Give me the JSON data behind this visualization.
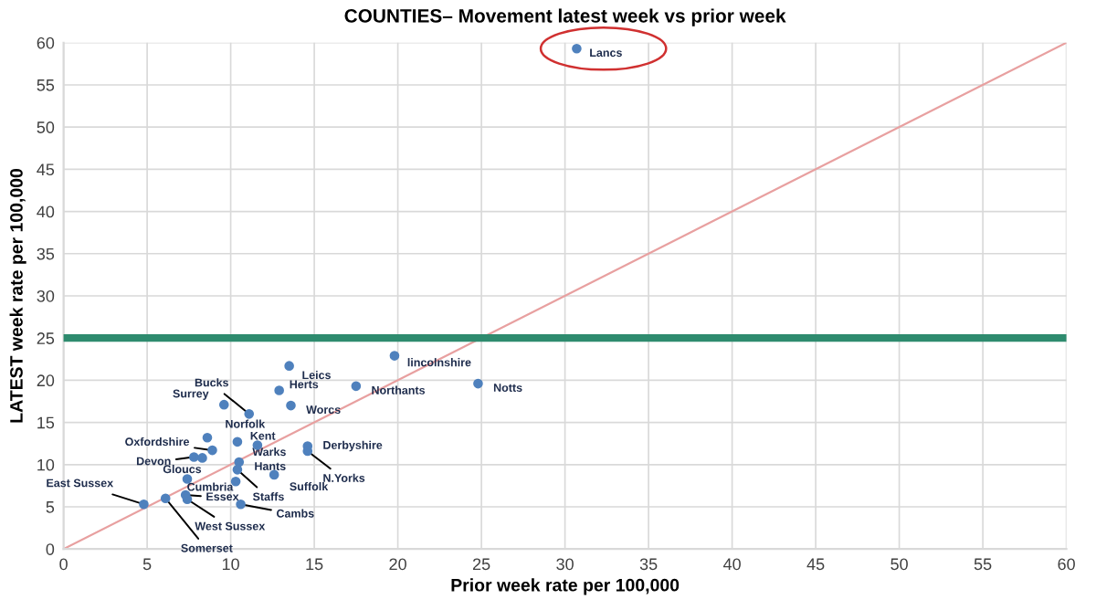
{
  "chart_data": {
    "type": "scatter",
    "title": "COUNTIES– Movement latest week vs prior week",
    "xlabel": "Prior week rate per 100,000",
    "ylabel": "LATEST week rate per 100,000",
    "xlim": [
      0,
      60
    ],
    "ylim": [
      0,
      60
    ],
    "xticks": [
      0,
      5,
      10,
      15,
      20,
      25,
      30,
      35,
      40,
      45,
      50,
      55,
      60
    ],
    "yticks": [
      0,
      5,
      10,
      15,
      20,
      25,
      30,
      35,
      40,
      45,
      50,
      55,
      60
    ],
    "grid": true,
    "series": [
      {
        "marker": "circle",
        "color": "#4f81bd",
        "x": [
          30.7,
          19.8,
          24.8,
          17.5,
          13.5,
          12.9,
          13.6,
          11.1,
          9.6,
          8.6,
          8.9,
          7.8,
          10.4,
          11.6,
          10.5,
          10.4,
          7.4,
          10.3,
          12.6,
          14.6,
          14.6,
          4.8,
          6.1,
          7.3,
          7.4,
          10.6,
          8.3
        ],
        "values": [
          59.3,
          22.9,
          19.6,
          19.3,
          21.7,
          18.8,
          17.0,
          16.0,
          17.1,
          13.2,
          11.7,
          10.9,
          12.7,
          12.3,
          10.3,
          9.4,
          8.3,
          8.0,
          8.8,
          12.2,
          11.6,
          5.3,
          6.0,
          6.4,
          5.9,
          5.3,
          10.8
        ]
      },
      {
        "type": "line",
        "color": "#e8a0a0",
        "x": [
          0,
          60
        ],
        "values": [
          0,
          60
        ]
      }
    ],
    "ref_lines": [
      {
        "axis": "y",
        "value": 25,
        "color": "#2e8b6e"
      }
    ],
    "annotations": [
      {
        "text": "Lancs",
        "x": 30.7,
        "y": 59.3
      },
      {
        "text": "lincolnshire",
        "x": 19.8,
        "y": 22.9
      },
      {
        "text": "Notts",
        "x": 24.8,
        "y": 19.6
      },
      {
        "text": "Northants",
        "x": 17.5,
        "y": 19.3
      },
      {
        "text": "Leics",
        "x": 13.5,
        "y": 21.7
      },
      {
        "text": "Herts",
        "x": 12.9,
        "y": 18.8
      },
      {
        "text": "Worcs",
        "x": 13.6,
        "y": 17.0
      },
      {
        "text": "Bucks",
        "x": 11.1,
        "y": 16.0
      },
      {
        "text": "Surrey",
        "x": 9.6,
        "y": 17.1
      },
      {
        "text": "Norfolk",
        "x": 8.6,
        "y": 13.2
      },
      {
        "text": "Oxfordshire",
        "x": 8.9,
        "y": 11.7
      },
      {
        "text": "Devon",
        "x": 7.8,
        "y": 10.9
      },
      {
        "text": "Kent",
        "x": 10.4,
        "y": 12.7
      },
      {
        "text": "Warks",
        "x": 11.6,
        "y": 12.3
      },
      {
        "text": "Hants",
        "x": 10.5,
        "y": 10.3
      },
      {
        "text": "Staffs",
        "x": 10.4,
        "y": 9.4
      },
      {
        "text": "Gloucs",
        "x": 7.4,
        "y": 8.3
      },
      {
        "text": "Cumbria",
        "x": 10.3,
        "y": 8.0
      },
      {
        "text": "Suffolk",
        "x": 12.6,
        "y": 8.8
      },
      {
        "text": "Derbyshire",
        "x": 14.6,
        "y": 12.2
      },
      {
        "text": "N.Yorks",
        "x": 14.6,
        "y": 11.6
      },
      {
        "text": "East Sussex",
        "x": 4.8,
        "y": 5.3
      },
      {
        "text": "Somerset",
        "x": 6.1,
        "y": 6.0
      },
      {
        "text": "Essex",
        "x": 7.3,
        "y": 6.4
      },
      {
        "text": "West Sussex",
        "x": 7.4,
        "y": 5.9
      },
      {
        "text": "Cambs",
        "x": 10.6,
        "y": 5.3
      }
    ]
  }
}
